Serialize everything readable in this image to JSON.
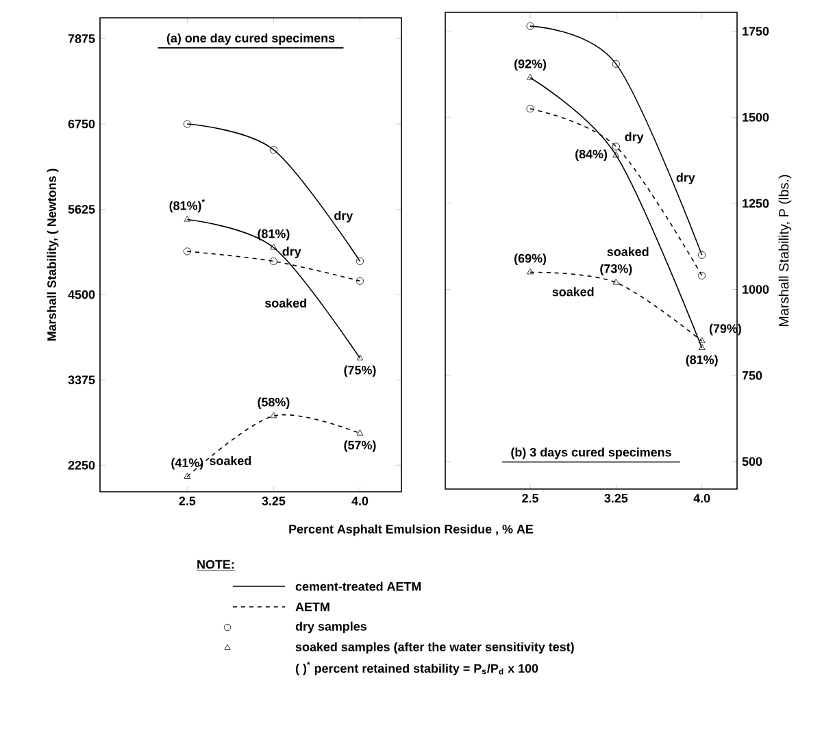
{
  "chart_data": [
    {
      "type": "line",
      "title": "(a) one day cured specimens",
      "ylabel": "Marshall Stability,   ( Newtons )",
      "xlabel": "Percent Asphalt Emulsion Residue ,  % AE",
      "categories": [
        "2.5",
        "3.25",
        "4.0"
      ],
      "series": [
        {
          "name": "dry",
          "color": "#000000",
          "line_style": "solid",
          "marker": "circle",
          "values": [
            6750,
            6410,
            4940
          ]
        },
        {
          "name": "soaked",
          "color": "#000000",
          "line_style": "solid",
          "marker": "triangle",
          "values": [
            5490,
            5120,
            3660
          ]
        },
        {
          "name": "dry",
          "color": "#000000",
          "line_style": "dashed",
          "marker": "circle",
          "values": [
            5070,
            4940,
            4680
          ]
        },
        {
          "name": "soaked",
          "color": "#000000",
          "line_style": "dashed",
          "marker": "triangle",
          "values": [
            2100,
            2900,
            2670
          ]
        }
      ],
      "ylim": [
        1900,
        8150
      ],
      "yticks": [
        2250,
        3375,
        4500,
        5625,
        6750,
        7875
      ],
      "annotations": [
        {
          "text": "(81%)$^{*}$",
          "x": "2.5",
          "y": 5490
        },
        {
          "text": "(81%)",
          "x": "3.25",
          "y": 5120
        },
        {
          "text": "(75%)",
          "x": "4.0",
          "y": 3660
        },
        {
          "text": "(41%)",
          "x": "2.5",
          "y": 2100
        },
        {
          "text": "(58%)",
          "x": "3.25",
          "y": 2900
        },
        {
          "text": "(57%)",
          "x": "4.0",
          "y": 2670
        },
        "NOTE:",
        "cement-treated AETM",
        "AETM",
        "dry samples",
        "soaked samples (after the water sensitivity test)",
        "( )$^{*}$ percent retained stability = P$_{s}$/P$_{d}$ x 100"
      ]
    },
    {
      "type": "line",
      "title": "(b) 3 days cured specimens",
      "ylabel": "Marshall Stability,  P (lbs.)",
      "categories": [
        "2.5",
        "3.25",
        "4.0"
      ],
      "series": [
        {
          "name": "dry",
          "color": "#000000",
          "line_style": "solid",
          "marker": "circle",
          "values": [
            1765,
            1655,
            1100
          ]
        },
        {
          "name": "soaked",
          "color": "#000000",
          "line_style": "solid",
          "marker": "triangle",
          "values": [
            1615,
            1390,
            830
          ]
        },
        {
          "name": "dry",
          "color": "#000000",
          "line_style": "dashed",
          "marker": "circle",
          "values": [
            1525,
            1415,
            1040
          ]
        },
        {
          "name": "soaked",
          "color": "#000000",
          "line_style": "dashed",
          "marker": "triangle",
          "values": [
            1050,
            1020,
            850
          ]
        }
      ],
      "ylim": [
        420,
        1805
      ],
      "yticks": [
        500,
        750,
        1000,
        1250,
        1500,
        1750
      ],
      "annotations": [
        {
          "text": "(92%)",
          "x": "2.5",
          "y": 1615
        },
        {
          "text": "(84%)",
          "x": "3.25",
          "y": 1390
        },
        {
          "text": "(81%)",
          "x": "4.0",
          "y": 830
        },
        {
          "text": "(69%)",
          "x": "2.5",
          "y": 1050
        },
        {
          "text": "(73%)",
          "x": "3.25",
          "y": 1020
        },
        {
          "text": "(79%)",
          "x": "4.0",
          "y": 850
        }
      ]
    }
  ]
}
